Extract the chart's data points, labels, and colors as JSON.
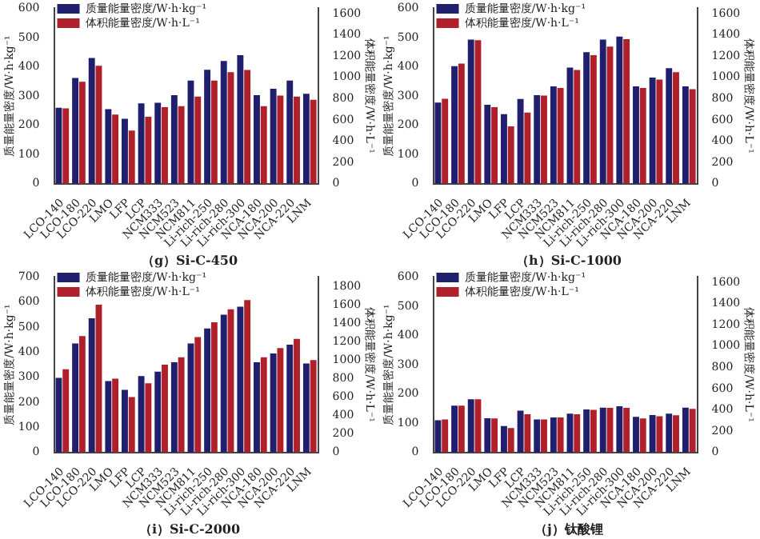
{
  "chart_data": [
    {
      "type": "bar",
      "title": "（g）Si-C-450",
      "ylabel": "质量能量密度/W·h·kg⁻¹",
      "y2label": "体积能量密度/W·h·L⁻¹",
      "legend": "top left",
      "grid": false,
      "categories": [
        "LCO-140",
        "LCO-180",
        "LCO-220",
        "LMO",
        "LFP",
        "LCP",
        "NCM333",
        "NCM523",
        "NCM811",
        "Li-rich-250",
        "Li-rich-280",
        "Li-rich-300",
        "NCA-180",
        "NCA-200",
        "NCA-220",
        "LNM"
      ],
      "series": [
        {
          "name": "质量能量密度/W·h·kg⁻¹",
          "color": "#1f1f6e",
          "values": [
            260,
            362,
            430,
            255,
            222,
            275,
            277,
            303,
            353,
            390,
            420,
            440,
            303,
            325,
            353,
            308
          ]
        },
        {
          "name": "体积能量密度/W·h·L⁻¹",
          "color": "#b0202a",
          "axis": "y2",
          "values": [
            710,
            960,
            1110,
            650,
            500,
            630,
            720,
            730,
            820,
            970,
            1050,
            1070,
            730,
            830,
            820,
            790
          ]
        }
      ],
      "ylim": [
        0,
        600
      ],
      "yticks": [
        0,
        100,
        200,
        300,
        400,
        500,
        600
      ],
      "y2lim": [
        0,
        1650
      ],
      "y2ticks": [
        0,
        200,
        400,
        600,
        800,
        1000,
        1200,
        1400,
        1600
      ]
    },
    {
      "type": "bar",
      "title": "（h）Si-C-1000",
      "ylabel": "质量能量密度/W·h·kg⁻¹",
      "y2label": "体积能量密度/W·h·L⁻¹",
      "legend": "top left",
      "grid": false,
      "categories": [
        "LCO-140",
        "LCO-180",
        "LCO-220",
        "LMO",
        "LFP",
        "LCP",
        "NCM333",
        "NCM523",
        "NCM811",
        "Li-rich-250",
        "Li-rich-280",
        "Li-rich-300",
        "NCA-180",
        "NCA-200",
        "NCA-220",
        "LNM"
      ],
      "series": [
        {
          "name": "质量能量密度/W·h·kg⁻¹",
          "color": "#1f1f6e",
          "values": [
            278,
            402,
            493,
            270,
            238,
            290,
            303,
            333,
            397,
            450,
            493,
            503,
            333,
            363,
            395,
            333
          ]
        },
        {
          "name": "体积能量密度/W·h·L⁻¹",
          "color": "#b0202a",
          "axis": "y2",
          "values": [
            800,
            1130,
            1350,
            720,
            540,
            670,
            830,
            900,
            1070,
            1210,
            1290,
            1360,
            900,
            980,
            1050,
            890
          ]
        }
      ],
      "ylim": [
        0,
        600
      ],
      "yticks": [
        0,
        100,
        200,
        300,
        400,
        500,
        600
      ],
      "y2lim": [
        0,
        1650
      ],
      "y2ticks": [
        0,
        200,
        400,
        600,
        800,
        1000,
        1200,
        1400,
        1600
      ]
    },
    {
      "type": "bar",
      "title": "（i）Si-C-2000",
      "ylabel": "质量能量密度/W·h·kg⁻¹",
      "y2label": "体积能量密度/W·h·L⁻¹",
      "legend": "top left",
      "grid": false,
      "categories": [
        "LCO-140",
        "LCO-180",
        "LCO-220",
        "LMO",
        "LFP",
        "LCP",
        "NCM333",
        "NCM523",
        "NCM811",
        "Li-rich-250",
        "Li-rich-280",
        "Li-rich-300",
        "NCA-180",
        "NCA-200",
        "NCA-220",
        "LNM"
      ],
      "series": [
        {
          "name": "质量能量密度/W·h·kg⁻¹",
          "color": "#1f1f6e",
          "values": [
            298,
            435,
            535,
            285,
            250,
            305,
            322,
            360,
            435,
            495,
            550,
            582,
            360,
            395,
            430,
            355
          ]
        },
        {
          "name": "体积能量密度/W·h·L⁻¹",
          "color": "#b0202a",
          "axis": "y2",
          "values": [
            900,
            1260,
            1600,
            800,
            600,
            750,
            950,
            1030,
            1250,
            1410,
            1550,
            1650,
            1030,
            1130,
            1230,
            1000
          ]
        }
      ],
      "ylim": [
        0,
        700
      ],
      "yticks": [
        0,
        100,
        200,
        300,
        400,
        500,
        600,
        700
      ],
      "y2lim": [
        0,
        1900
      ],
      "y2ticks": [
        0,
        200,
        400,
        600,
        800,
        1000,
        1200,
        1400,
        1600,
        1800
      ]
    },
    {
      "type": "bar",
      "title": "（j）钛酸锂",
      "ylabel": "质量能量密度/W·h·kg⁻¹",
      "y2label": "体积能量密度/W·h·L⁻¹",
      "legend": "top left",
      "grid": false,
      "categories": [
        "LCO-140",
        "LCO-180",
        "LCO-220",
        "LMO",
        "LFP",
        "LCP",
        "NCM333",
        "NCM523",
        "NCM811",
        "Li-rich-250",
        "Li-rich-280",
        "Li-rich-300",
        "NCA-180",
        "NCA-200",
        "NCA-220",
        "LNM"
      ],
      "series": [
        {
          "name": "质量能量密度/W·h·kg⁻¹",
          "color": "#1f1f6e",
          "values": [
            110,
            160,
            182,
            117,
            90,
            143,
            113,
            120,
            133,
            147,
            153,
            158,
            122,
            128,
            133,
            153
          ]
        },
        {
          "name": "体积能量密度/W·h·L⁻¹",
          "color": "#b0202a",
          "axis": "y2",
          "values": [
            310,
            440,
            500,
            320,
            230,
            360,
            310,
            330,
            360,
            400,
            420,
            420,
            320,
            340,
            350,
            410
          ]
        }
      ],
      "ylim": [
        0,
        600
      ],
      "yticks": [
        0,
        100,
        200,
        300,
        400,
        500,
        600
      ],
      "y2lim": [
        0,
        1650
      ],
      "y2ticks": [
        0,
        200,
        400,
        600,
        800,
        1000,
        1200,
        1400,
        1600
      ]
    }
  ]
}
